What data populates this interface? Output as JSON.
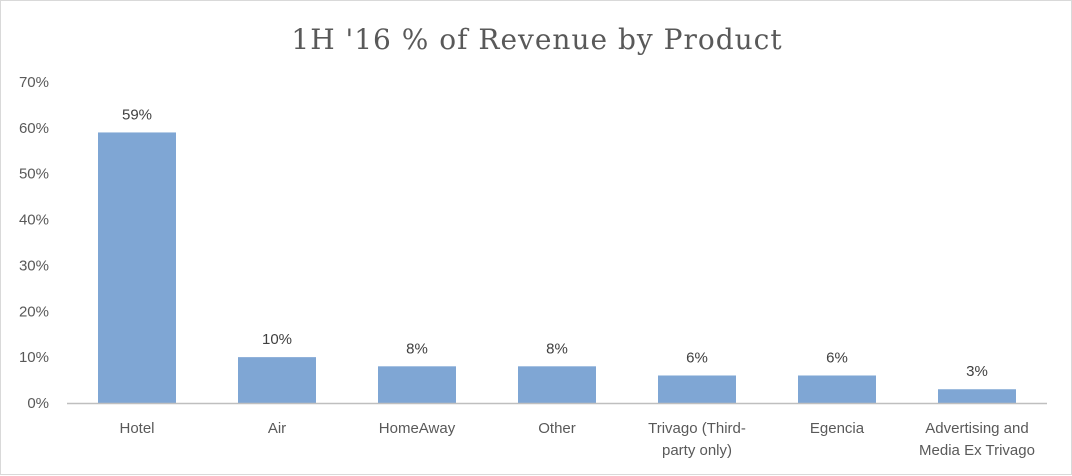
{
  "chart_data": {
    "type": "bar",
    "title": "1H '16 % of Revenue by Product",
    "xlabel": "",
    "ylabel": "",
    "categories": [
      [
        "Hotel"
      ],
      [
        "Air"
      ],
      [
        "HomeAway"
      ],
      [
        "Other"
      ],
      [
        "Trivago (Third-",
        "party only)"
      ],
      [
        "Egencia"
      ],
      [
        "Advertising and",
        "Media Ex Trivago"
      ]
    ],
    "values": [
      59,
      10,
      8,
      8,
      6,
      6,
      3
    ],
    "data_labels": [
      "59%",
      "10%",
      "8%",
      "8%",
      "6%",
      "6%",
      "3%"
    ],
    "yticks": [
      "0%",
      "10%",
      "20%",
      "30%",
      "40%",
      "50%",
      "60%",
      "70%"
    ],
    "ylim": [
      0,
      70
    ],
    "grid": false,
    "legend": "none",
    "colors": {
      "bar": "#7FA6D4",
      "axis": "#bfbfbf",
      "text": "#595959"
    }
  }
}
